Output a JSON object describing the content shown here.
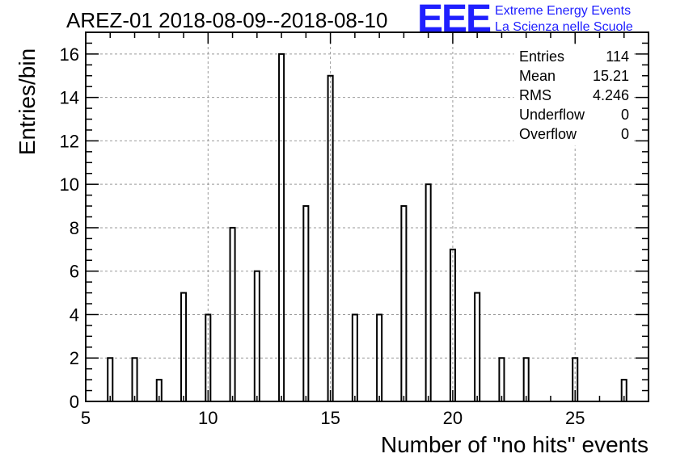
{
  "chart_data": {
    "type": "bar",
    "title": "AREZ-01 2018-08-09--2018-08-10",
    "xlabel": "Number of \"no hits\" events",
    "ylabel": "Entries/bin",
    "xlim": [
      5,
      28
    ],
    "ylim": [
      0,
      17
    ],
    "x_ticks": [
      5,
      10,
      15,
      20,
      25
    ],
    "y_ticks": [
      0,
      2,
      4,
      6,
      8,
      10,
      12,
      14,
      16
    ],
    "grid": true,
    "bin_width": 0.2,
    "bins": [
      {
        "x": 6,
        "value": 2
      },
      {
        "x": 7,
        "value": 2
      },
      {
        "x": 8,
        "value": 1
      },
      {
        "x": 9,
        "value": 5
      },
      {
        "x": 10,
        "value": 4
      },
      {
        "x": 11,
        "value": 8
      },
      {
        "x": 12,
        "value": 6
      },
      {
        "x": 13,
        "value": 16
      },
      {
        "x": 14,
        "value": 9
      },
      {
        "x": 15,
        "value": 15
      },
      {
        "x": 16,
        "value": 4
      },
      {
        "x": 17,
        "value": 4
      },
      {
        "x": 18,
        "value": 9
      },
      {
        "x": 19,
        "value": 10
      },
      {
        "x": 20,
        "value": 7
      },
      {
        "x": 21,
        "value": 5
      },
      {
        "x": 22,
        "value": 2
      },
      {
        "x": 23,
        "value": 2
      },
      {
        "x": 25,
        "value": 2
      },
      {
        "x": 27,
        "value": 1
      }
    ],
    "stats": [
      {
        "label": "Entries",
        "value": "114"
      },
      {
        "label": "Mean",
        "value": "15.21"
      },
      {
        "label": "RMS",
        "value": "4.246"
      },
      {
        "label": "Underflow",
        "value": "0"
      },
      {
        "label": "Overflow",
        "value": "0"
      }
    ]
  },
  "logo": {
    "mark": "EEE",
    "line1": "Extreme Energy Events",
    "line2": "La Scienza nelle Scuole",
    "color": "#1f1fff"
  }
}
